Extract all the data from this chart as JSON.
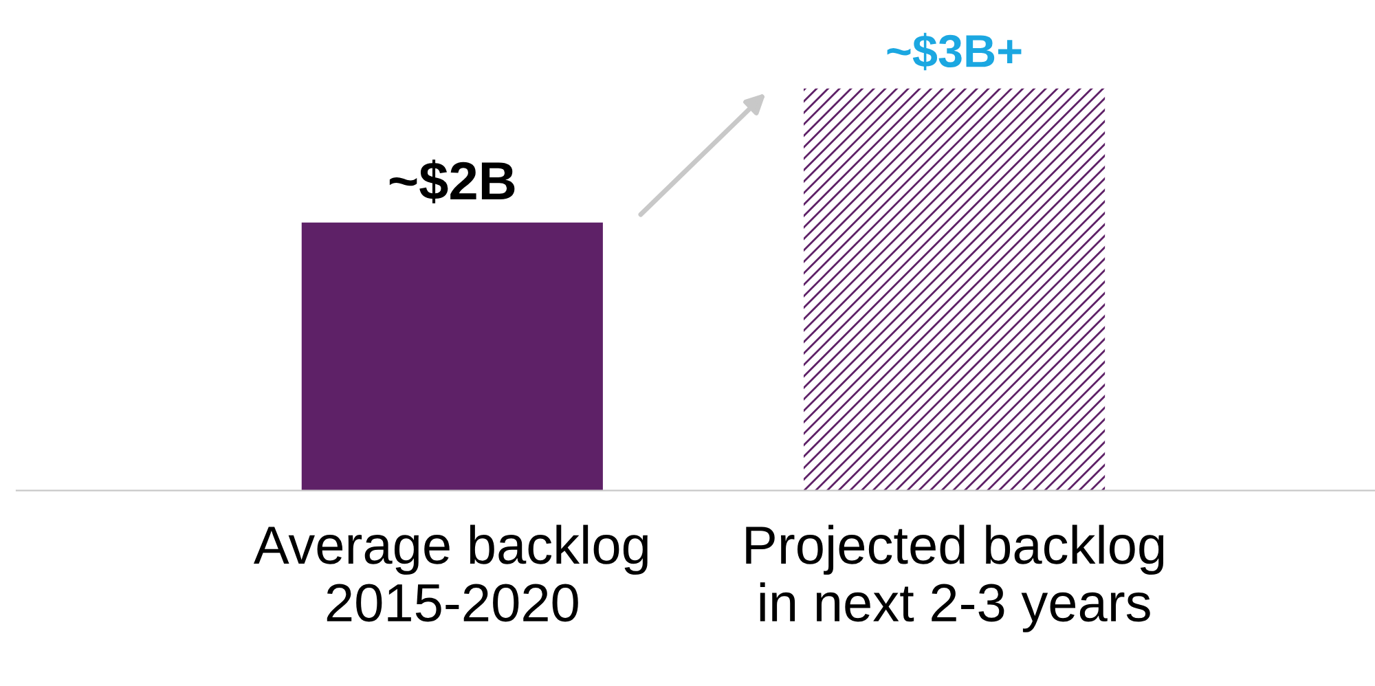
{
  "chart_data": {
    "type": "bar",
    "categories": [
      "Average backlog\n2015-2020",
      "Projected backlog\nin next 2-3 years"
    ],
    "values": [
      2,
      3
    ],
    "colors": [
      "#5e2167",
      "#5e2167"
    ],
    "value_labels": [
      "~$2B",
      "~$3B+"
    ],
    "grid": false,
    "legend": false
  }
}
